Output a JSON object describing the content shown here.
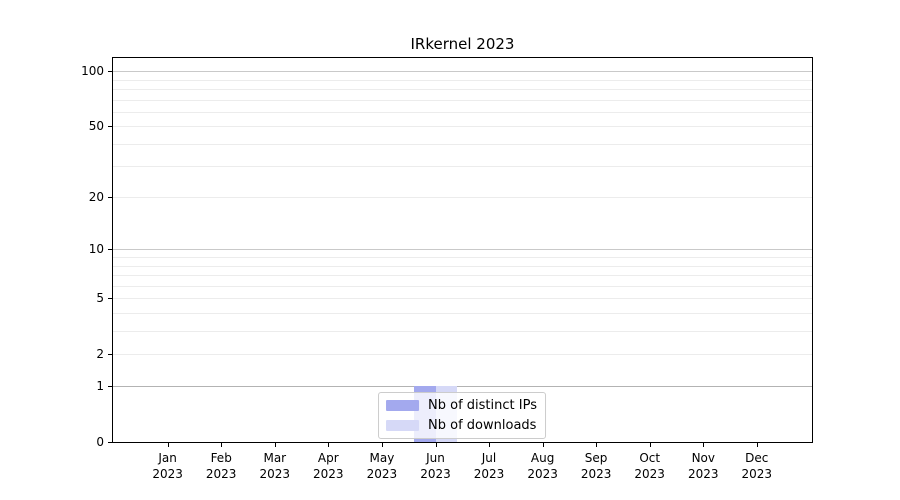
{
  "chart_data": {
    "type": "bar",
    "title": "IRkernel 2023",
    "categories": [
      "Jan",
      "Feb",
      "Mar",
      "Apr",
      "May",
      "Jun",
      "Jul",
      "Aug",
      "Sep",
      "Oct",
      "Nov",
      "Dec"
    ],
    "category_year": "2023",
    "series": [
      {
        "name": "Nb of distinct IPs",
        "color": "#a3a9ee",
        "values": [
          0,
          0,
          0,
          0,
          0,
          1,
          0,
          0,
          0,
          0,
          0,
          0
        ]
      },
      {
        "name": "Nb of downloads",
        "color": "#d6d9f7",
        "values": [
          0,
          0,
          0,
          0,
          0,
          1,
          0,
          0,
          0,
          0,
          0,
          0
        ]
      }
    ],
    "xlabel": "",
    "ylabel": "",
    "yscale": "log10(value+1)",
    "ylim": [
      0,
      118
    ],
    "y_tick_values": [
      0,
      1,
      2,
      5,
      10,
      20,
      50,
      100
    ],
    "y_gridlines_minor": [
      2,
      3,
      4,
      5,
      6,
      7,
      8,
      9,
      20,
      30,
      40,
      50,
      60,
      70,
      80,
      90
    ],
    "y_gridlines_major": [
      1,
      10,
      100
    ],
    "grid": true,
    "legend_position": "lower center inside"
  },
  "style": {
    "axis_color": "#000000",
    "grid_minor_color": "#ececec",
    "grid_major_color": "#c9c9c9",
    "grid_unit_line_color": "#b3b3b3",
    "legend_border_color": "#cccccc",
    "legend_background": "rgba(255,255,255,0.8)"
  }
}
